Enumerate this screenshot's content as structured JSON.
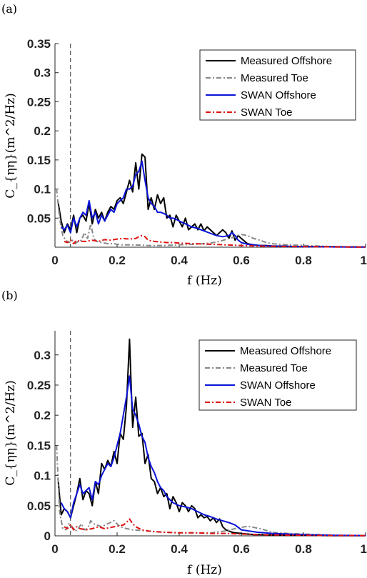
{
  "chart_data": [
    {
      "panel_label": "(a)",
      "type": "line",
      "xlabel": "f (Hz)",
      "ylabel": "C_{ηη}(m^2/Hz)",
      "xlim": [
        0,
        1
      ],
      "ylim": [
        0,
        0.35
      ],
      "xticks": [
        0,
        0.2,
        0.4,
        0.6,
        0.8,
        1
      ],
      "xtick_labels": [
        "0",
        "0.2",
        "0.4",
        "0.6",
        "0.8",
        "1"
      ],
      "yticks": [
        0.05,
        0.1,
        0.15,
        0.2,
        0.25,
        0.3,
        0.35
      ],
      "ytick_labels": [
        "0.05",
        "0.1",
        "0.15",
        "0.2",
        "0.25",
        "0.3",
        "0.35"
      ],
      "grid": false,
      "legend_position": "top-right",
      "vline_x": 0.05,
      "series": [
        {
          "name": "Measured Offshore",
          "color": "#000000",
          "style": "solid",
          "x": [
            0.01,
            0.02,
            0.03,
            0.04,
            0.05,
            0.06,
            0.07,
            0.08,
            0.09,
            0.1,
            0.11,
            0.12,
            0.13,
            0.14,
            0.15,
            0.16,
            0.17,
            0.18,
            0.19,
            0.2,
            0.21,
            0.22,
            0.23,
            0.24,
            0.25,
            0.26,
            0.27,
            0.28,
            0.29,
            0.3,
            0.31,
            0.32,
            0.33,
            0.34,
            0.35,
            0.36,
            0.37,
            0.38,
            0.39,
            0.4,
            0.41,
            0.42,
            0.43,
            0.44,
            0.45,
            0.46,
            0.47,
            0.48,
            0.49,
            0.5,
            0.51,
            0.52,
            0.53,
            0.54,
            0.55,
            0.56,
            0.57,
            0.58,
            0.59,
            0.6,
            0.62,
            0.64,
            0.66,
            0.68,
            0.7,
            0.72,
            0.74,
            0.76,
            0.78,
            0.8,
            0.85,
            0.9,
            0.95,
            1.0
          ],
          "y": [
            0.078,
            0.045,
            0.025,
            0.04,
            0.03,
            0.055,
            0.025,
            0.05,
            0.055,
            0.045,
            0.075,
            0.04,
            0.065,
            0.05,
            0.06,
            0.045,
            0.06,
            0.07,
            0.065,
            0.08,
            0.085,
            0.075,
            0.095,
            0.115,
            0.095,
            0.145,
            0.1,
            0.16,
            0.155,
            0.065,
            0.085,
            0.065,
            0.09,
            0.075,
            0.085,
            0.05,
            0.055,
            0.035,
            0.055,
            0.045,
            0.035,
            0.05,
            0.03,
            0.035,
            0.04,
            0.03,
            0.04,
            0.028,
            0.035,
            0.03,
            0.025,
            0.02,
            0.025,
            0.03,
            0.025,
            0.015,
            0.028,
            0.012,
            0.02,
            0.015,
            0.006,
            0.004,
            0.003,
            0.003,
            0.002,
            0.002,
            0.002,
            0.001,
            0.001,
            0.001,
            0.001,
            0.0008,
            0.0005,
            0.0004
          ]
        },
        {
          "name": "Measured Toe",
          "color": "#888888",
          "style": "dashdot",
          "x": [
            0.005,
            0.015,
            0.025,
            0.035,
            0.045,
            0.055,
            0.065,
            0.075,
            0.085,
            0.095,
            0.105,
            0.115,
            0.125,
            0.135,
            0.15,
            0.17,
            0.19,
            0.21,
            0.23,
            0.25,
            0.3,
            0.35,
            0.4,
            0.45,
            0.5,
            0.53,
            0.56,
            0.58,
            0.6,
            0.62,
            0.64,
            0.66,
            0.68,
            0.7,
            0.72,
            0.75,
            0.8,
            0.85,
            0.9,
            1.0
          ],
          "y": [
            0.101,
            0.05,
            0.02,
            0.012,
            0.008,
            0.012,
            0.006,
            0.01,
            0.012,
            0.025,
            0.015,
            0.04,
            0.015,
            0.01,
            0.008,
            0.006,
            0.006,
            0.004,
            0.004,
            0.004,
            0.003,
            0.003,
            0.004,
            0.005,
            0.007,
            0.01,
            0.015,
            0.018,
            0.022,
            0.02,
            0.015,
            0.012,
            0.008,
            0.006,
            0.005,
            0.004,
            0.003,
            0.002,
            0.001,
            0.0005
          ]
        },
        {
          "name": "SWAN Offshore",
          "color": "#0a14d8",
          "style": "solid",
          "x": [
            0.02,
            0.03,
            0.04,
            0.05,
            0.06,
            0.07,
            0.08,
            0.09,
            0.1,
            0.11,
            0.12,
            0.13,
            0.14,
            0.15,
            0.16,
            0.17,
            0.18,
            0.19,
            0.2,
            0.21,
            0.22,
            0.23,
            0.24,
            0.25,
            0.26,
            0.27,
            0.28,
            0.29,
            0.3,
            0.31,
            0.32,
            0.33,
            0.34,
            0.35,
            0.36,
            0.37,
            0.38,
            0.39,
            0.4,
            0.42,
            0.44,
            0.46,
            0.48,
            0.5,
            0.52,
            0.54,
            0.56,
            0.57,
            0.58,
            0.59,
            0.6,
            0.62,
            0.64,
            0.66,
            0.7,
            0.75,
            0.8,
            0.85,
            0.9,
            1.0
          ],
          "y": [
            0.035,
            0.03,
            0.038,
            0.025,
            0.05,
            0.035,
            0.05,
            0.06,
            0.055,
            0.08,
            0.05,
            0.06,
            0.04,
            0.055,
            0.045,
            0.055,
            0.065,
            0.06,
            0.075,
            0.08,
            0.085,
            0.1,
            0.1,
            0.105,
            0.125,
            0.13,
            0.148,
            0.115,
            0.085,
            0.075,
            0.07,
            0.06,
            0.06,
            0.058,
            0.055,
            0.05,
            0.05,
            0.048,
            0.045,
            0.04,
            0.035,
            0.032,
            0.028,
            0.024,
            0.02,
            0.018,
            0.02,
            0.025,
            0.02,
            0.012,
            0.008,
            0.005,
            0.004,
            0.003,
            0.002,
            0.0015,
            0.001,
            0.0008,
            0.0005,
            0.0003
          ]
        },
        {
          "name": "SWAN Toe",
          "color": "#e01010",
          "style": "dashdot",
          "x": [
            0.03,
            0.04,
            0.05,
            0.06,
            0.07,
            0.08,
            0.1,
            0.12,
            0.14,
            0.16,
            0.18,
            0.2,
            0.22,
            0.24,
            0.26,
            0.27,
            0.28,
            0.29,
            0.3,
            0.32,
            0.34,
            0.36,
            0.38,
            0.4,
            0.45,
            0.5,
            0.55,
            0.6,
            0.65,
            0.7,
            0.8,
            0.9,
            1.0
          ],
          "y": [
            0.01,
            0.008,
            0.012,
            0.006,
            0.012,
            0.01,
            0.01,
            0.012,
            0.01,
            0.013,
            0.012,
            0.014,
            0.015,
            0.014,
            0.015,
            0.018,
            0.02,
            0.018,
            0.012,
            0.01,
            0.009,
            0.008,
            0.008,
            0.007,
            0.006,
            0.005,
            0.004,
            0.003,
            0.002,
            0.0015,
            0.001,
            0.0005,
            0.0003
          ]
        }
      ]
    },
    {
      "panel_label": "(b)",
      "type": "line",
      "xlabel": "f (Hz)",
      "ylabel": "C_{ηη}(m^2/Hz)",
      "xlim": [
        0,
        1
      ],
      "ylim": [
        0,
        0.34
      ],
      "xticks": [
        0,
        0.2,
        0.4,
        0.6,
        0.8,
        1
      ],
      "xtick_labels": [
        "0",
        "0.2",
        "0.4",
        "0.6",
        "0.8",
        "1"
      ],
      "yticks": [
        0,
        0.05,
        0.1,
        0.15,
        0.2,
        0.25,
        0.3
      ],
      "ytick_labels": [
        "0",
        "0.05",
        "0.1",
        "0.15",
        "0.2",
        "0.25",
        "0.3"
      ],
      "grid": false,
      "legend_position": "top-right",
      "vline_x": 0.05,
      "series": [
        {
          "name": "Measured Offshore",
          "color": "#000000",
          "style": "solid",
          "x": [
            0.01,
            0.02,
            0.03,
            0.04,
            0.05,
            0.06,
            0.07,
            0.08,
            0.09,
            0.1,
            0.11,
            0.12,
            0.13,
            0.14,
            0.15,
            0.16,
            0.17,
            0.18,
            0.19,
            0.2,
            0.21,
            0.22,
            0.23,
            0.24,
            0.25,
            0.26,
            0.27,
            0.28,
            0.29,
            0.3,
            0.31,
            0.32,
            0.33,
            0.34,
            0.35,
            0.36,
            0.37,
            0.38,
            0.39,
            0.4,
            0.41,
            0.42,
            0.43,
            0.44,
            0.45,
            0.46,
            0.47,
            0.48,
            0.49,
            0.5,
            0.51,
            0.52,
            0.53,
            0.54,
            0.55,
            0.56,
            0.57,
            0.58,
            0.6,
            0.62,
            0.64,
            0.66,
            0.7,
            0.75,
            0.8,
            0.85,
            0.9,
            1.0
          ],
          "y": [
            0.095,
            0.035,
            0.045,
            0.04,
            0.03,
            0.05,
            0.07,
            0.095,
            0.06,
            0.075,
            0.07,
            0.05,
            0.09,
            0.07,
            0.12,
            0.11,
            0.125,
            0.115,
            0.14,
            0.12,
            0.17,
            0.16,
            0.215,
            0.326,
            0.18,
            0.23,
            0.165,
            0.17,
            0.12,
            0.135,
            0.095,
            0.09,
            0.07,
            0.08,
            0.065,
            0.07,
            0.045,
            0.065,
            0.055,
            0.04,
            0.055,
            0.05,
            0.04,
            0.05,
            0.045,
            0.03,
            0.035,
            0.03,
            0.032,
            0.025,
            0.03,
            0.022,
            0.028,
            0.015,
            0.01,
            0.008,
            0.006,
            0.005,
            0.004,
            0.003,
            0.002,
            0.002,
            0.0015,
            0.001,
            0.0008,
            0.0006,
            0.0004,
            0.0003
          ]
        },
        {
          "name": "Measured Toe",
          "color": "#888888",
          "style": "dashdot",
          "x": [
            0.005,
            0.015,
            0.025,
            0.035,
            0.045,
            0.055,
            0.065,
            0.075,
            0.085,
            0.095,
            0.105,
            0.115,
            0.125,
            0.135,
            0.15,
            0.17,
            0.19,
            0.21,
            0.23,
            0.25,
            0.3,
            0.35,
            0.4,
            0.45,
            0.5,
            0.55,
            0.58,
            0.6,
            0.62,
            0.64,
            0.66,
            0.68,
            0.7,
            0.72,
            0.75,
            0.8,
            0.85,
            0.9,
            1.0
          ],
          "y": [
            0.15,
            0.04,
            0.012,
            0.01,
            0.02,
            0.015,
            0.008,
            0.012,
            0.02,
            0.01,
            0.012,
            0.025,
            0.02,
            0.018,
            0.015,
            0.02,
            0.025,
            0.015,
            0.012,
            0.01,
            0.008,
            0.006,
            0.005,
            0.005,
            0.005,
            0.008,
            0.012,
            0.014,
            0.016,
            0.014,
            0.012,
            0.009,
            0.006,
            0.005,
            0.004,
            0.003,
            0.002,
            0.001,
            0.0005
          ]
        },
        {
          "name": "SWAN Offshore",
          "color": "#0a14d8",
          "style": "solid",
          "x": [
            0.02,
            0.03,
            0.04,
            0.05,
            0.06,
            0.07,
            0.08,
            0.09,
            0.1,
            0.11,
            0.12,
            0.13,
            0.14,
            0.15,
            0.16,
            0.17,
            0.18,
            0.19,
            0.2,
            0.21,
            0.22,
            0.23,
            0.24,
            0.25,
            0.26,
            0.27,
            0.28,
            0.29,
            0.3,
            0.31,
            0.32,
            0.33,
            0.34,
            0.35,
            0.36,
            0.38,
            0.4,
            0.42,
            0.44,
            0.46,
            0.48,
            0.5,
            0.52,
            0.54,
            0.56,
            0.58,
            0.6,
            0.65,
            0.7,
            0.75,
            0.8,
            0.9,
            1.0
          ],
          "y": [
            0.055,
            0.045,
            0.04,
            0.03,
            0.055,
            0.07,
            0.085,
            0.07,
            0.075,
            0.08,
            0.06,
            0.09,
            0.085,
            0.1,
            0.11,
            0.12,
            0.115,
            0.13,
            0.15,
            0.17,
            0.2,
            0.23,
            0.265,
            0.21,
            0.2,
            0.185,
            0.165,
            0.155,
            0.13,
            0.115,
            0.105,
            0.09,
            0.08,
            0.075,
            0.065,
            0.055,
            0.05,
            0.048,
            0.045,
            0.04,
            0.035,
            0.032,
            0.028,
            0.025,
            0.022,
            0.018,
            0.01,
            0.006,
            0.004,
            0.003,
            0.002,
            0.001,
            0.0005
          ]
        },
        {
          "name": "SWAN Toe",
          "color": "#e01010",
          "style": "dashdot",
          "x": [
            0.03,
            0.04,
            0.05,
            0.06,
            0.07,
            0.08,
            0.1,
            0.12,
            0.14,
            0.16,
            0.18,
            0.2,
            0.22,
            0.23,
            0.24,
            0.25,
            0.26,
            0.28,
            0.3,
            0.32,
            0.35,
            0.4,
            0.45,
            0.5,
            0.55,
            0.6,
            0.65,
            0.7,
            0.8,
            0.9,
            1.0
          ],
          "y": [
            0.015,
            0.012,
            0.018,
            0.01,
            0.015,
            0.012,
            0.01,
            0.012,
            0.015,
            0.012,
            0.014,
            0.016,
            0.018,
            0.022,
            0.028,
            0.02,
            0.015,
            0.01,
            0.008,
            0.007,
            0.006,
            0.005,
            0.005,
            0.004,
            0.004,
            0.003,
            0.002,
            0.0015,
            0.001,
            0.0005,
            0.0003
          ]
        }
      ]
    }
  ]
}
